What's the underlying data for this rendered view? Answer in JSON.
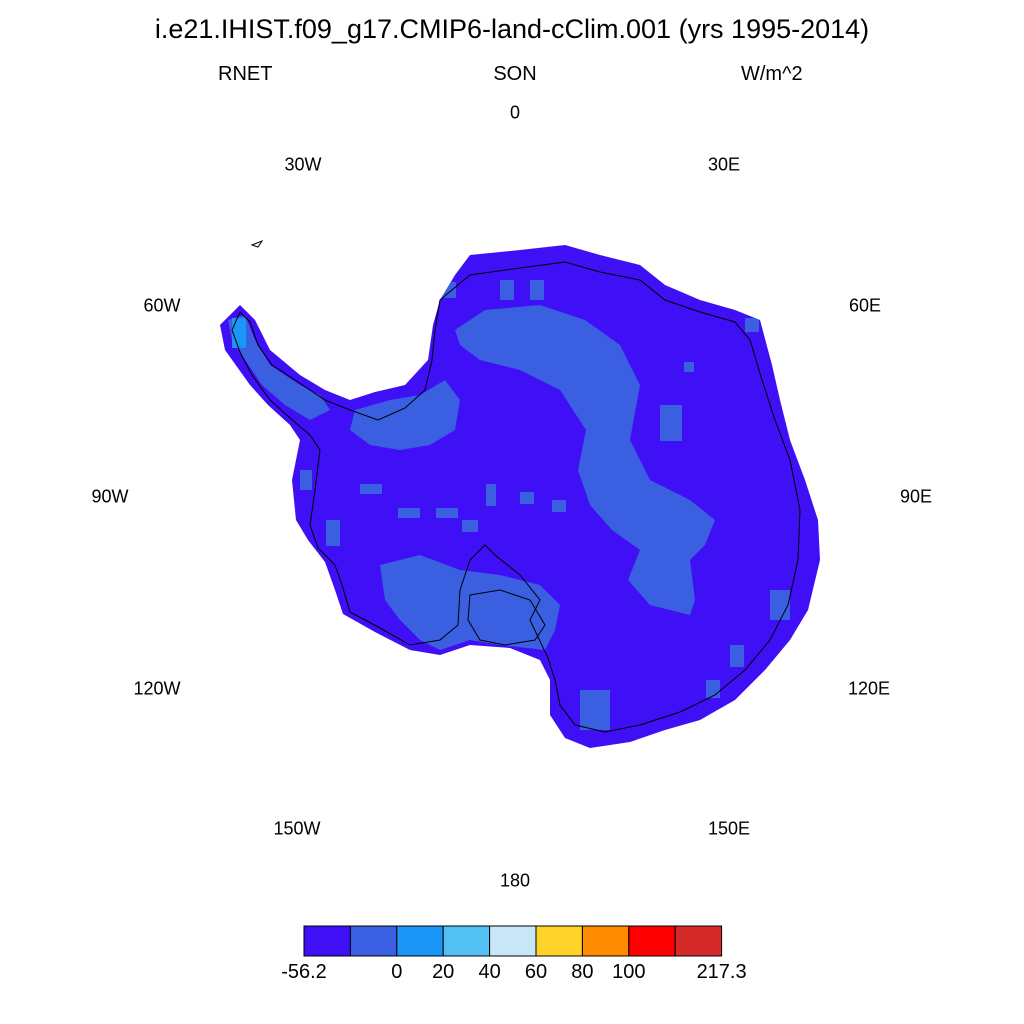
{
  "header": {
    "title": "i.e21.IHIST.f09_g17.CMIP6-land-cClim.001 (yrs 1995-2014)",
    "variable": "RNET",
    "season": "SON",
    "units": "W/m^2"
  },
  "longitude_labels": {
    "lon_0": "0",
    "lon_30e": "30E",
    "lon_60e": "60E",
    "lon_90e": "90E",
    "lon_120e": "120E",
    "lon_150e": "150E",
    "lon_180": "180",
    "lon_150w": "150W",
    "lon_120w": "120W",
    "lon_90w": "90W",
    "lon_60w": "60W",
    "lon_30w": "30W"
  },
  "colorbar": {
    "colors": [
      "#3f0ff5",
      "#3a5fe0",
      "#1a96f8",
      "#52c0f2",
      "#c9e6f6",
      "#ffd42a",
      "#ff8c00",
      "#ff0000",
      "#d42a2a"
    ],
    "labels": [
      {
        "text": "-56.2",
        "boundary": 0
      },
      {
        "text": "0",
        "boundary": 2
      },
      {
        "text": "20",
        "boundary": 3
      },
      {
        "text": "40",
        "boundary": 4
      },
      {
        "text": "60",
        "boundary": 5
      },
      {
        "text": "80",
        "boundary": 6
      },
      {
        "text": "100",
        "boundary": 7
      },
      {
        "text": "217.3",
        "boundary": 9
      }
    ]
  },
  "map_colors": {
    "low": "#3f0ff5",
    "mid": "#3a5fe0",
    "light": "#1a96f8"
  }
}
